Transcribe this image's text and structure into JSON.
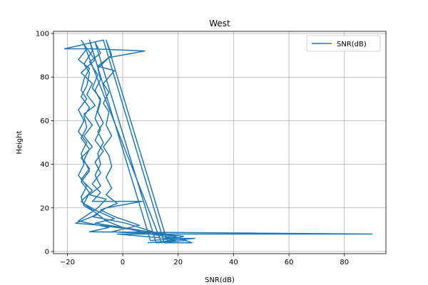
{
  "chart_data": {
    "type": "line",
    "title": "West",
    "xlabel": "SNR(dB)",
    "ylabel": "Height",
    "xlim": [
      -25,
      95
    ],
    "ylim": [
      -1,
      101
    ],
    "xticks": [
      -20,
      0,
      20,
      40,
      60,
      80
    ],
    "yticks": [
      0,
      20,
      40,
      60,
      80,
      100
    ],
    "grid": true,
    "legend_position": "top-right",
    "colors": {
      "series": "#1f77b4",
      "grid": "#b0b0b0",
      "axis": "#000000"
    },
    "series": [
      {
        "name": "SNR(dB)",
        "points": [
          [
            -15,
            97
          ],
          [
            -13,
            93
          ],
          [
            -16,
            88
          ],
          [
            -12,
            84
          ],
          [
            -14,
            79
          ],
          [
            -15,
            74
          ],
          [
            -13,
            70
          ],
          [
            -16,
            65
          ],
          [
            -14,
            60
          ],
          [
            -16,
            55
          ],
          [
            -13,
            50
          ],
          [
            -15,
            45
          ],
          [
            -14,
            40
          ],
          [
            -16,
            35
          ],
          [
            -13,
            30
          ],
          [
            -15,
            25
          ],
          [
            -14,
            21
          ],
          [
            -10,
            18
          ],
          [
            -6,
            14
          ],
          [
            0,
            11
          ],
          [
            10,
            8
          ],
          [
            20,
            6
          ],
          [
            10,
            5
          ],
          [
            -12,
            97
          ],
          [
            -11,
            92
          ],
          [
            -14,
            86
          ],
          [
            -12,
            82
          ],
          [
            -13,
            76
          ],
          [
            -15,
            71
          ],
          [
            -12,
            66
          ],
          [
            -14,
            62
          ],
          [
            -13,
            57
          ],
          [
            -15,
            52
          ],
          [
            -12,
            47
          ],
          [
            -14,
            42
          ],
          [
            -12,
            37
          ],
          [
            -15,
            32
          ],
          [
            -12,
            27
          ],
          [
            -14,
            22
          ],
          [
            -10,
            19
          ],
          [
            -3,
            15
          ],
          [
            -10,
            13
          ],
          [
            5,
            10
          ],
          [
            18,
            7
          ],
          [
            25,
            4
          ],
          [
            15,
            4
          ],
          [
            -7,
            97
          ],
          [
            -21,
            93
          ],
          [
            -12,
            93
          ],
          [
            8,
            92
          ],
          [
            -5,
            89
          ],
          [
            -9,
            84
          ],
          [
            -8,
            79
          ],
          [
            -10,
            74
          ],
          [
            -8,
            69
          ],
          [
            -9,
            64
          ],
          [
            -7,
            59
          ],
          [
            -9,
            55
          ],
          [
            -7,
            50
          ],
          [
            -9,
            45
          ],
          [
            -8,
            40
          ],
          [
            -10,
            35
          ],
          [
            -8,
            30
          ],
          [
            -12,
            26
          ],
          [
            -6,
            24
          ],
          [
            -9,
            20
          ],
          [
            -16,
            14
          ],
          [
            -5,
            11
          ],
          [
            -12,
            9
          ],
          [
            90,
            8
          ],
          [
            -2,
            8
          ],
          [
            16,
            6
          ],
          [
            26,
            6
          ],
          [
            16,
            5
          ],
          [
            -6,
            97
          ],
          [
            -4,
            90
          ],
          [
            -9,
            85
          ],
          [
            -3,
            83
          ],
          [
            -7,
            77
          ],
          [
            -5,
            73
          ],
          [
            -7,
            68
          ],
          [
            -5,
            64
          ],
          [
            -6,
            58
          ],
          [
            -4,
            53
          ],
          [
            -7,
            48
          ],
          [
            -5,
            44
          ],
          [
            -4,
            39
          ],
          [
            -6,
            34
          ],
          [
            -4,
            29
          ],
          [
            -6,
            26
          ],
          [
            -2,
            22
          ],
          [
            -8,
            19
          ],
          [
            -3,
            16
          ],
          [
            6,
            12
          ],
          [
            -4,
            9
          ],
          [
            13,
            8
          ],
          [
            22,
            7
          ],
          [
            14,
            4
          ],
          [
            -14,
            95
          ],
          [
            -10,
            88
          ],
          [
            -15,
            82
          ],
          [
            -11,
            77
          ],
          [
            -13,
            72
          ],
          [
            -10,
            67
          ],
          [
            -14,
            63
          ],
          [
            -11,
            58
          ],
          [
            -14,
            53
          ],
          [
            -11,
            48
          ],
          [
            -15,
            43
          ],
          [
            -12,
            38
          ],
          [
            -15,
            33
          ],
          [
            -11,
            28
          ],
          [
            -15,
            23
          ],
          [
            -9,
            17
          ],
          [
            -17,
            13
          ],
          [
            -8,
            12
          ],
          [
            4,
            10
          ],
          [
            16,
            8
          ],
          [
            23,
            5
          ],
          [
            12,
            4
          ],
          [
            -10,
            96
          ],
          [
            -8,
            91
          ],
          [
            -12,
            87
          ],
          [
            -9,
            81
          ],
          [
            -11,
            75
          ],
          [
            -8,
            70
          ],
          [
            -10,
            61
          ],
          [
            -8,
            56
          ],
          [
            -10,
            51
          ],
          [
            -7,
            46
          ],
          [
            -10,
            41
          ],
          [
            -8,
            36
          ],
          [
            -11,
            31
          ],
          [
            -8,
            27
          ],
          [
            -11,
            23
          ],
          [
            7,
            23
          ],
          [
            -6,
            20
          ],
          [
            -11,
            16
          ],
          [
            1,
            13
          ],
          [
            11,
            9
          ],
          [
            19,
            5
          ],
          [
            9,
            4
          ]
        ]
      }
    ]
  }
}
